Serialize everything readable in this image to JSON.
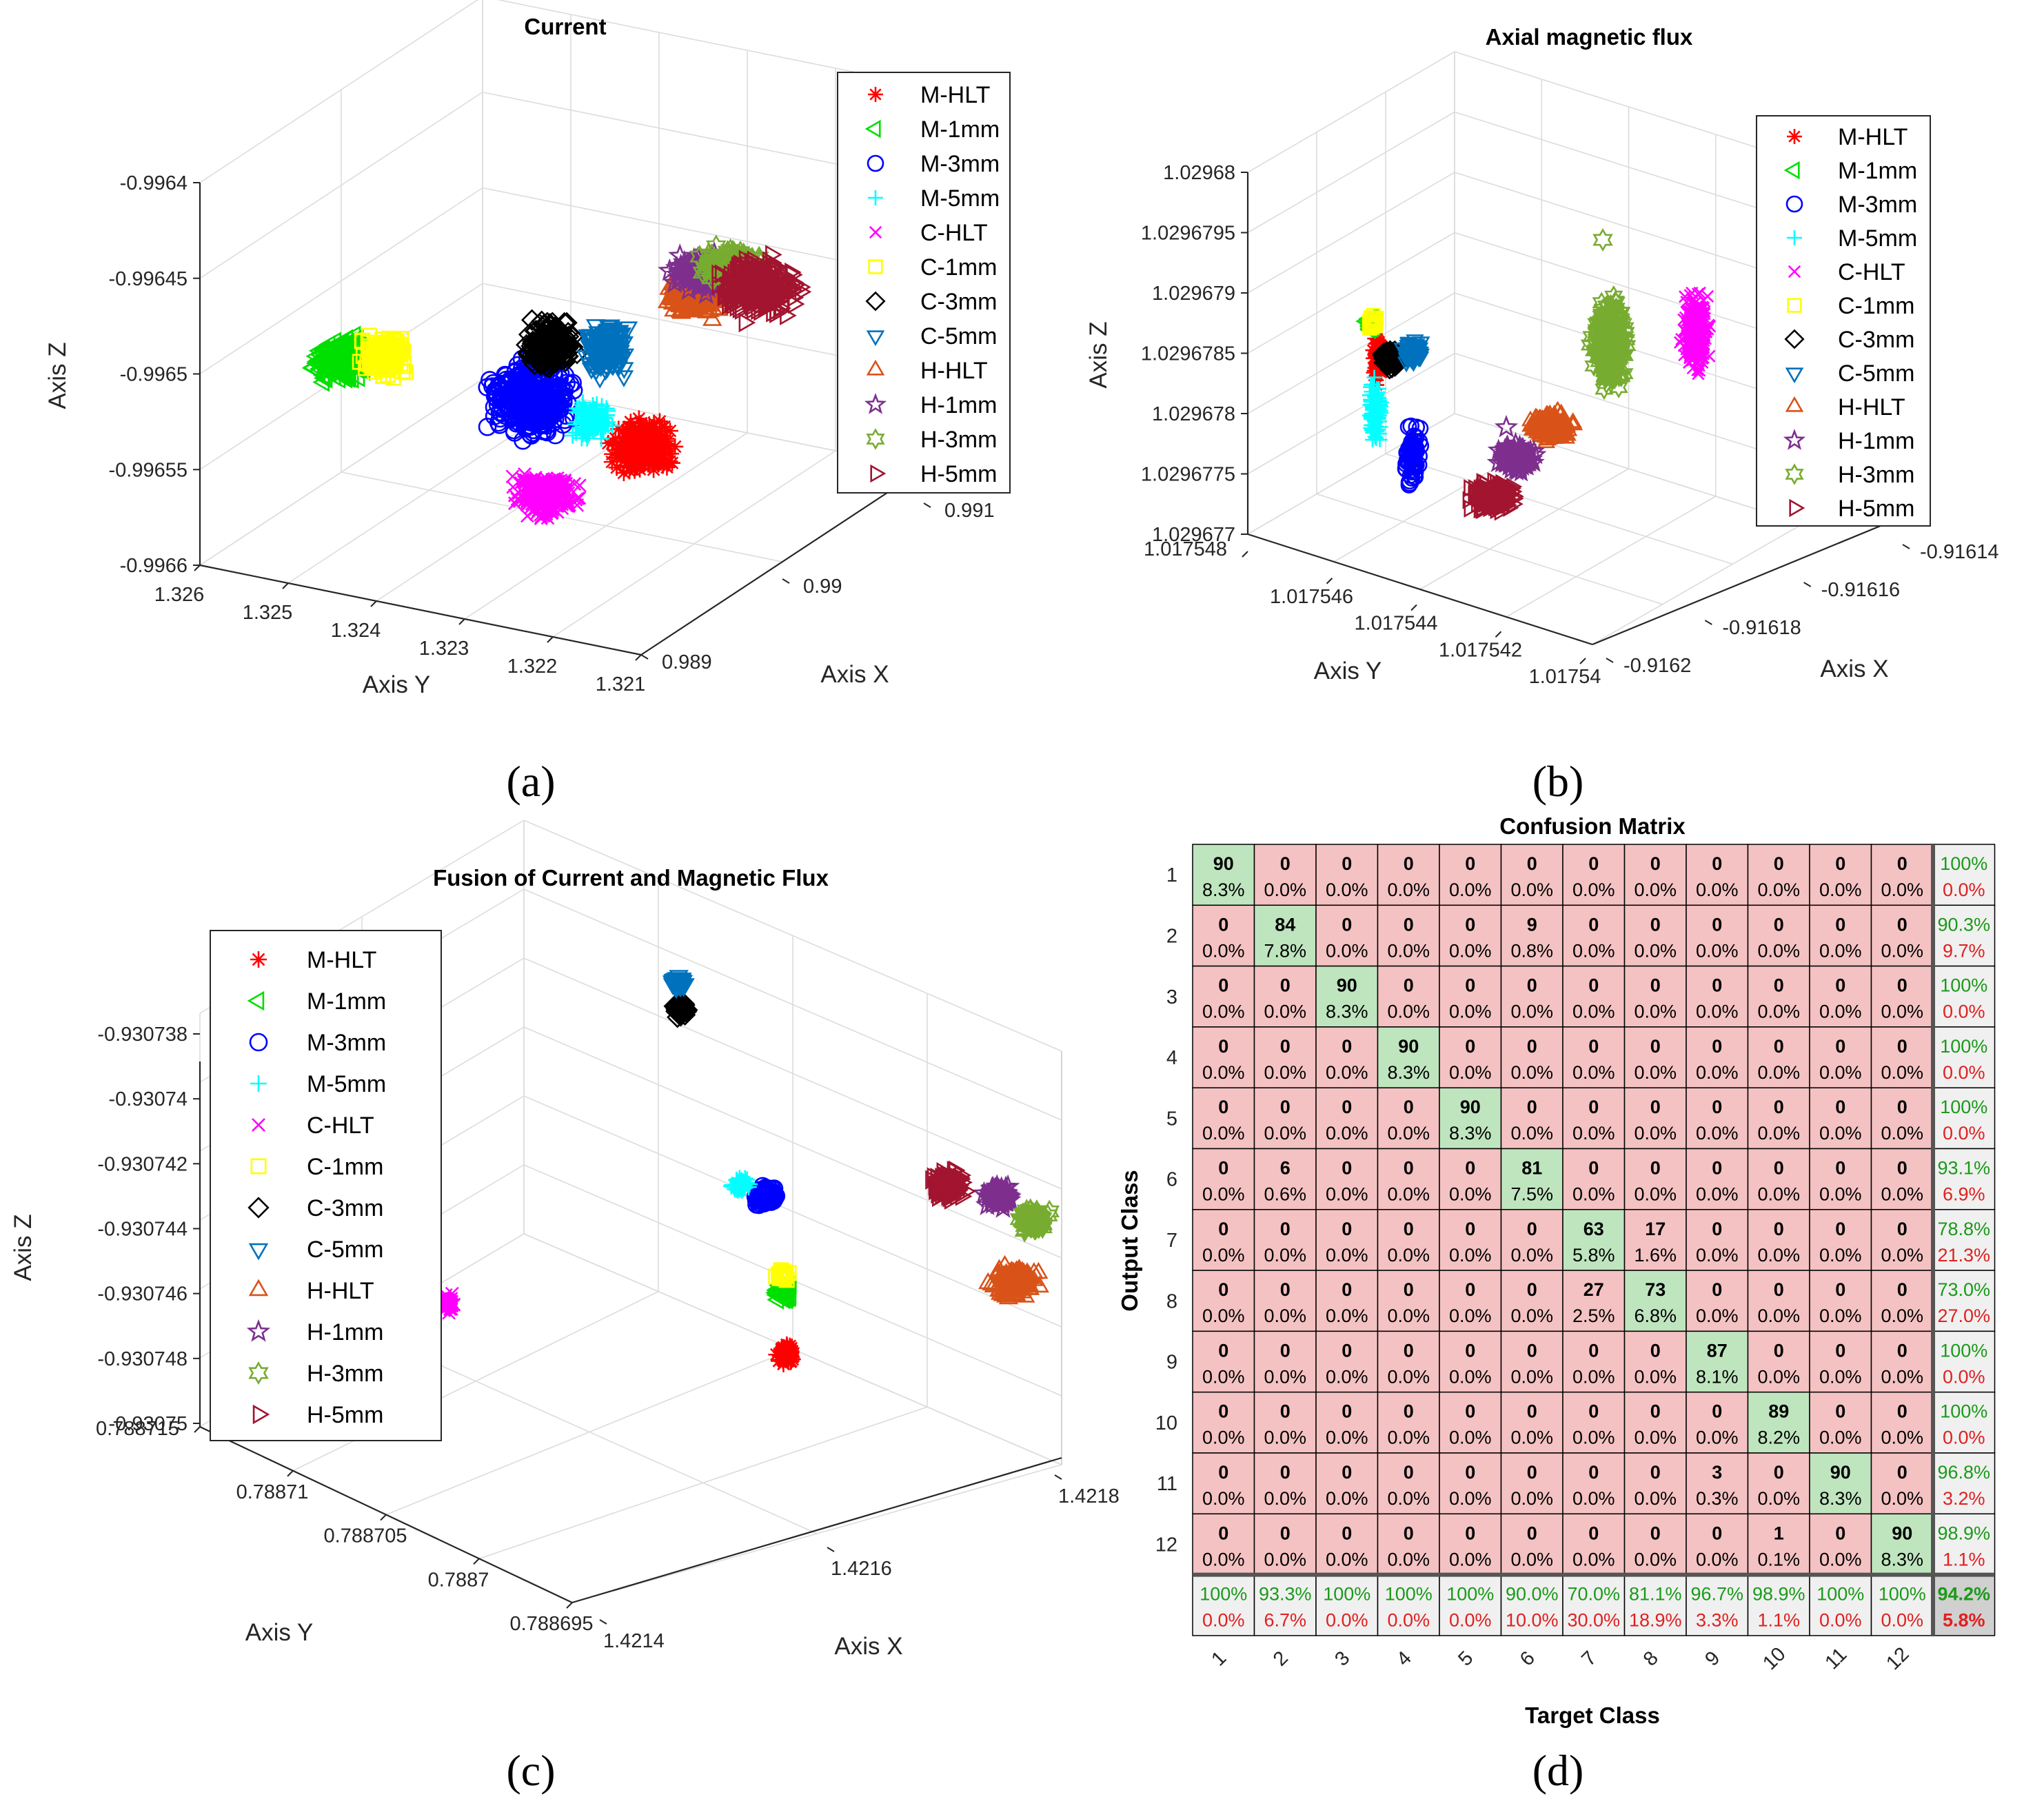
{
  "chart_data": [
    {
      "id": "a",
      "type": "scatter",
      "title": "Current",
      "caption": "(a)",
      "xlabel": "Axis X",
      "ylabel": "Axis Y",
      "zlabel": "Axis Z",
      "x_ticks": [
        "0.989",
        "0.99",
        "0.991"
      ],
      "y_ticks": [
        "1.326",
        "1.325",
        "1.324",
        "1.323",
        "1.322",
        "1.321"
      ],
      "z_ticks": [
        "-0.9964",
        "-0.99645",
        "-0.9965",
        "-0.99655",
        "-0.9966"
      ],
      "xlim": [
        0.989,
        0.991
      ],
      "ylim": [
        1.321,
        1.326
      ],
      "zlim": [
        -0.9966,
        -0.9964
      ],
      "grid": true,
      "legend_position": "top-right",
      "clusters": [
        {
          "series": "M-HLT",
          "x": 0.9894,
          "y": 1.3217,
          "z": -0.99653
        },
        {
          "series": "M-1mm",
          "x": 0.9906,
          "y": 1.3258,
          "z": -0.99648
        },
        {
          "series": "M-3mm",
          "x": 0.9898,
          "y": 1.3233,
          "z": -0.99651
        },
        {
          "series": "M-5mm",
          "x": 0.9898,
          "y": 1.3225,
          "z": -0.99651
        },
        {
          "series": "C-HLT",
          "x": 0.9893,
          "y": 1.3227,
          "z": -0.99657
        },
        {
          "series": "C-1mm",
          "x": 0.9906,
          "y": 1.3255,
          "z": -0.99648
        },
        {
          "series": "C-3mm",
          "x": 0.9903,
          "y": 1.3232,
          "z": -0.99647
        },
        {
          "series": "C-5mm",
          "x": 0.9903,
          "y": 1.3226,
          "z": -0.99647
        },
        {
          "series": "H-HLT",
          "x": 0.9905,
          "y": 1.3213,
          "z": -0.99643
        },
        {
          "series": "H-1mm",
          "x": 0.9907,
          "y": 1.3214,
          "z": -0.99642
        },
        {
          "series": "H-3mm",
          "x": 0.9907,
          "y": 1.3212,
          "z": -0.99643
        },
        {
          "series": "H-5mm",
          "x": 0.9907,
          "y": 1.321,
          "z": -0.99643
        }
      ]
    },
    {
      "id": "b",
      "type": "scatter",
      "title": "Axial magnetic flux",
      "caption": "(b)",
      "xlabel": "Axis X",
      "ylabel": "Axis Y",
      "zlabel": "Axis Z",
      "x_ticks": [
        "-0.9162",
        "-0.91618",
        "-0.91616",
        "-0.91614"
      ],
      "y_ticks": [
        "1.017548",
        "1.017546",
        "1.017544",
        "1.017542",
        "1.01754"
      ],
      "z_ticks": [
        "1.02968",
        "1.0296795",
        "1.029679",
        "1.0296785",
        "1.029678",
        "1.0296775",
        "1.029677"
      ],
      "xlim": [
        -0.9162,
        -0.91614
      ],
      "ylim": [
        1.01754,
        1.017548
      ],
      "zlim": [
        1.029677,
        1.02968
      ],
      "grid": true,
      "legend_position": "top-right",
      "clusters": [
        {
          "series": "M-HLT",
          "x": -0.91619,
          "y": 1.017546,
          "z": 1.0296786
        },
        {
          "series": "M-1mm",
          "x": -0.91619,
          "y": 1.0175465,
          "z": 1.0296788
        },
        {
          "series": "M-3mm",
          "x": -0.91619,
          "y": 1.0175445,
          "z": 1.0296779
        },
        {
          "series": "M-5mm",
          "x": -0.91619,
          "y": 1.017545,
          "z": 1.0296781
        },
        {
          "series": "C-HLT",
          "x": -0.91614,
          "y": 1.017541,
          "z": 1.0296788
        },
        {
          "series": "C-1mm",
          "x": -0.91619,
          "y": 1.0175463,
          "z": 1.0296788
        },
        {
          "series": "C-3mm",
          "x": -0.91619,
          "y": 1.017546,
          "z": 1.0296786
        },
        {
          "series": "C-5mm",
          "x": -0.91619,
          "y": 1.0175458,
          "z": 1.0296786
        },
        {
          "series": "H-HLT",
          "x": -0.91618,
          "y": 1.017542,
          "z": 1.0296778
        },
        {
          "series": "H-1mm",
          "x": -0.91618,
          "y": 1.0175425,
          "z": 1.0296776
        },
        {
          "series": "H-3mm",
          "x": -0.91616,
          "y": 1.017542,
          "z": 1.0296787
        },
        {
          "series": "H-5mm",
          "x": -0.91619,
          "y": 1.0175435,
          "z": 1.0296775
        }
      ]
    },
    {
      "id": "c",
      "type": "scatter",
      "title": "Fusion of Current and Magnetic Flux",
      "caption": "(c)",
      "xlabel": "Axis X",
      "ylabel": "Axis Y",
      "zlabel": "Axis Z",
      "x_ticks": [
        "1.4214",
        "1.4216",
        "1.4218"
      ],
      "y_ticks": [
        "0.788715",
        "0.78871",
        "0.788705",
        "0.7887",
        "0.788695"
      ],
      "z_ticks": [
        "-0.930738",
        "-0.93074",
        "-0.930742",
        "-0.930744",
        "-0.930746",
        "-0.930748",
        "-0.93075"
      ],
      "xlim": [
        1.4214,
        1.4219
      ],
      "ylim": [
        0.788695,
        0.788715
      ],
      "zlim": [
        -0.93075,
        -0.930738
      ],
      "grid": true,
      "legend_position": "top-left",
      "clusters": [
        {
          "series": "M-HLT",
          "x": 1.42165,
          "y": 0.7887,
          "z": -0.930747
        },
        {
          "series": "M-1mm",
          "x": 1.42165,
          "y": 0.788703,
          "z": -0.930746
        },
        {
          "series": "M-3mm",
          "x": 1.42163,
          "y": 0.788707,
          "z": -0.930743
        },
        {
          "series": "M-5mm",
          "x": 1.42162,
          "y": 0.788708,
          "z": -0.930743
        },
        {
          "series": "C-HLT",
          "x": 1.4214,
          "y": 0.788712,
          "z": -0.930748
        },
        {
          "series": "C-1mm",
          "x": 1.42165,
          "y": 0.788703,
          "z": -0.930745
        },
        {
          "series": "C-3mm",
          "x": 1.42164,
          "y": 0.788714,
          "z": -0.930739
        },
        {
          "series": "C-5mm",
          "x": 1.42164,
          "y": 0.788714,
          "z": -0.930738
        },
        {
          "series": "H-HLT",
          "x": 1.42185,
          "y": 0.788696,
          "z": -0.930745
        },
        {
          "series": "H-1mm",
          "x": 1.42185,
          "y": 0.788698,
          "z": -0.930743
        },
        {
          "series": "H-3mm",
          "x": 1.42187,
          "y": 0.788696,
          "z": -0.930743
        },
        {
          "series": "H-5mm",
          "x": 1.42183,
          "y": 0.7887,
          "z": -0.930743
        }
      ]
    },
    {
      "id": "d",
      "type": "heatmap",
      "title": "Confusion Matrix",
      "caption": "(d)",
      "xlabel": "Target Class",
      "ylabel": "Output Class",
      "classes": [
        "1",
        "2",
        "3",
        "4",
        "5",
        "6",
        "7",
        "8",
        "9",
        "10",
        "11",
        "12"
      ],
      "counts": [
        [
          90,
          0,
          0,
          0,
          0,
          0,
          0,
          0,
          0,
          0,
          0,
          0
        ],
        [
          0,
          84,
          0,
          0,
          0,
          9,
          0,
          0,
          0,
          0,
          0,
          0
        ],
        [
          0,
          0,
          90,
          0,
          0,
          0,
          0,
          0,
          0,
          0,
          0,
          0
        ],
        [
          0,
          0,
          0,
          90,
          0,
          0,
          0,
          0,
          0,
          0,
          0,
          0
        ],
        [
          0,
          0,
          0,
          0,
          90,
          0,
          0,
          0,
          0,
          0,
          0,
          0
        ],
        [
          0,
          6,
          0,
          0,
          0,
          81,
          0,
          0,
          0,
          0,
          0,
          0
        ],
        [
          0,
          0,
          0,
          0,
          0,
          0,
          63,
          17,
          0,
          0,
          0,
          0
        ],
        [
          0,
          0,
          0,
          0,
          0,
          0,
          27,
          73,
          0,
          0,
          0,
          0
        ],
        [
          0,
          0,
          0,
          0,
          0,
          0,
          0,
          0,
          87,
          0,
          0,
          0
        ],
        [
          0,
          0,
          0,
          0,
          0,
          0,
          0,
          0,
          0,
          89,
          0,
          0
        ],
        [
          0,
          0,
          0,
          0,
          0,
          0,
          0,
          0,
          3,
          0,
          90,
          0
        ],
        [
          0,
          0,
          0,
          0,
          0,
          0,
          0,
          0,
          0,
          1,
          0,
          90
        ]
      ],
      "percents": [
        [
          "8.3%",
          "0.0%",
          "0.0%",
          "0.0%",
          "0.0%",
          "0.0%",
          "0.0%",
          "0.0%",
          "0.0%",
          "0.0%",
          "0.0%",
          "0.0%"
        ],
        [
          "0.0%",
          "7.8%",
          "0.0%",
          "0.0%",
          "0.0%",
          "0.8%",
          "0.0%",
          "0.0%",
          "0.0%",
          "0.0%",
          "0.0%",
          "0.0%"
        ],
        [
          "0.0%",
          "0.0%",
          "8.3%",
          "0.0%",
          "0.0%",
          "0.0%",
          "0.0%",
          "0.0%",
          "0.0%",
          "0.0%",
          "0.0%",
          "0.0%"
        ],
        [
          "0.0%",
          "0.0%",
          "0.0%",
          "8.3%",
          "0.0%",
          "0.0%",
          "0.0%",
          "0.0%",
          "0.0%",
          "0.0%",
          "0.0%",
          "0.0%"
        ],
        [
          "0.0%",
          "0.0%",
          "0.0%",
          "0.0%",
          "8.3%",
          "0.0%",
          "0.0%",
          "0.0%",
          "0.0%",
          "0.0%",
          "0.0%",
          "0.0%"
        ],
        [
          "0.0%",
          "0.6%",
          "0.0%",
          "0.0%",
          "0.0%",
          "7.5%",
          "0.0%",
          "0.0%",
          "0.0%",
          "0.0%",
          "0.0%",
          "0.0%"
        ],
        [
          "0.0%",
          "0.0%",
          "0.0%",
          "0.0%",
          "0.0%",
          "0.0%",
          "5.8%",
          "1.6%",
          "0.0%",
          "0.0%",
          "0.0%",
          "0.0%"
        ],
        [
          "0.0%",
          "0.0%",
          "0.0%",
          "0.0%",
          "0.0%",
          "0.0%",
          "2.5%",
          "6.8%",
          "0.0%",
          "0.0%",
          "0.0%",
          "0.0%"
        ],
        [
          "0.0%",
          "0.0%",
          "0.0%",
          "0.0%",
          "0.0%",
          "0.0%",
          "0.0%",
          "0.0%",
          "8.1%",
          "0.0%",
          "0.0%",
          "0.0%"
        ],
        [
          "0.0%",
          "0.0%",
          "0.0%",
          "0.0%",
          "0.0%",
          "0.0%",
          "0.0%",
          "0.0%",
          "0.0%",
          "8.2%",
          "0.0%",
          "0.0%"
        ],
        [
          "0.0%",
          "0.0%",
          "0.0%",
          "0.0%",
          "0.0%",
          "0.0%",
          "0.0%",
          "0.0%",
          "0.3%",
          "0.0%",
          "8.3%",
          "0.0%"
        ],
        [
          "0.0%",
          "0.0%",
          "0.0%",
          "0.0%",
          "0.0%",
          "0.0%",
          "0.0%",
          "0.0%",
          "0.0%",
          "0.1%",
          "0.0%",
          "8.3%"
        ]
      ],
      "row_summary": [
        [
          "100%",
          "0.0%"
        ],
        [
          "90.3%",
          "9.7%"
        ],
        [
          "100%",
          "0.0%"
        ],
        [
          "100%",
          "0.0%"
        ],
        [
          "100%",
          "0.0%"
        ],
        [
          "93.1%",
          "6.9%"
        ],
        [
          "78.8%",
          "21.3%"
        ],
        [
          "73.0%",
          "27.0%"
        ],
        [
          "100%",
          "0.0%"
        ],
        [
          "100%",
          "0.0%"
        ],
        [
          "96.8%",
          "3.2%"
        ],
        [
          "98.9%",
          "1.1%"
        ]
      ],
      "col_summary": [
        [
          "100%",
          "0.0%"
        ],
        [
          "93.3%",
          "6.7%"
        ],
        [
          "100%",
          "0.0%"
        ],
        [
          "100%",
          "0.0%"
        ],
        [
          "100%",
          "0.0%"
        ],
        [
          "90.0%",
          "10.0%"
        ],
        [
          "70.0%",
          "30.0%"
        ],
        [
          "81.1%",
          "18.9%"
        ],
        [
          "96.7%",
          "3.3%"
        ],
        [
          "98.9%",
          "1.1%"
        ],
        [
          "100%",
          "0.0%"
        ],
        [
          "100%",
          "0.0%"
        ]
      ],
      "overall": [
        "94.2%",
        "5.8%"
      ]
    }
  ],
  "legend": [
    {
      "label": "M-HLT",
      "marker": "asterisk",
      "color": "#ff0000"
    },
    {
      "label": "M-1mm",
      "marker": "triangle-left",
      "color": "#00e000"
    },
    {
      "label": "M-3mm",
      "marker": "circle",
      "color": "#0000ff"
    },
    {
      "label": "M-5mm",
      "marker": "plus",
      "color": "#00ffff"
    },
    {
      "label": "C-HLT",
      "marker": "x",
      "color": "#ff00ff"
    },
    {
      "label": "C-1mm",
      "marker": "square",
      "color": "#ffff00"
    },
    {
      "label": "C-3mm",
      "marker": "diamond",
      "color": "#000000"
    },
    {
      "label": "C-5mm",
      "marker": "triangle-down",
      "color": "#0072bd"
    },
    {
      "label": "H-HLT",
      "marker": "triangle-up",
      "color": "#d95319"
    },
    {
      "label": "H-1mm",
      "marker": "pentagram",
      "color": "#7e2f8e"
    },
    {
      "label": "H-3mm",
      "marker": "hexagram",
      "color": "#77ac30"
    },
    {
      "label": "H-5mm",
      "marker": "triangle-right",
      "color": "#a2142f"
    }
  ],
  "colors": {
    "diag_cell": "#bfe5bf",
    "off_cell": "#f4c2c2",
    "summary_cell": "#f0f0f0",
    "overall_cell": "#d0d0d0",
    "good_text": "#1a9a1a",
    "bad_text": "#e02020"
  }
}
